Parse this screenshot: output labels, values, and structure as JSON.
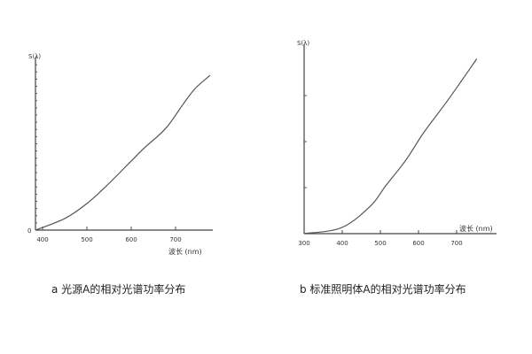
{
  "chart_data": [
    {
      "type": "line",
      "caption": "a 光源A的相对光谱功率分布",
      "ylabel": "S(λ)",
      "xlabel": "波长 (nm)",
      "xticks": [
        400,
        500,
        600,
        700
      ],
      "y_zero_label": "0",
      "xlim": [
        384,
        780
      ],
      "ylim": [
        0,
        100
      ],
      "grid": false,
      "series": [
        {
          "x": [
            384,
            450,
            500,
            544,
            598,
            630,
            678,
            718,
            744,
            778
          ],
          "y": [
            0,
            6.7,
            15.4,
            25.6,
            39.5,
            47.7,
            59,
            73.3,
            82,
            89.7
          ]
        }
      ],
      "line_color": "#555555"
    },
    {
      "type": "line",
      "caption": "b 标准照明体A的相对光谱功率分布",
      "ylabel": "S(λ)",
      "xlabel": "波长 (nm)",
      "xticks": [
        300,
        400,
        500,
        600,
        700
      ],
      "xlim": [
        300,
        790
      ],
      "ylim": [
        0,
        4
      ],
      "grid": false,
      "series": [
        {
          "x": [
            300,
            398,
            474,
            514,
            567,
            614,
            677,
            753
          ],
          "y": [
            0,
            0.13,
            0.6,
            1.04,
            1.6,
            2.2,
            2.9,
            3.8
          ]
        }
      ],
      "line_color": "#555555"
    }
  ]
}
